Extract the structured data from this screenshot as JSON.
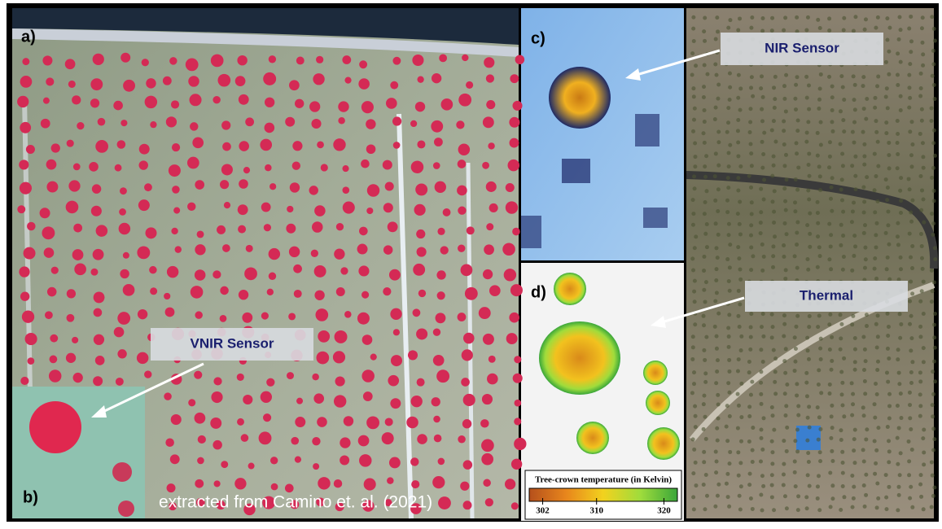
{
  "panels": {
    "a": "a)",
    "b": "b)",
    "c": "c)",
    "d": "d)"
  },
  "callouts": [
    "VNIR Sensor",
    "NIR Sensor",
    "Thermal"
  ],
  "credit": "extracted from Camino et. al. (2021)",
  "colorbar": {
    "title": "Tree-crown temperature (in Kelvin)",
    "lim": [
      300,
      322
    ],
    "ticks": [
      302,
      310,
      320
    ],
    "colors": [
      "#b5501c",
      "#e8861c",
      "#f2d21e",
      "#9fdc3c",
      "#3aa63a"
    ]
  }
}
